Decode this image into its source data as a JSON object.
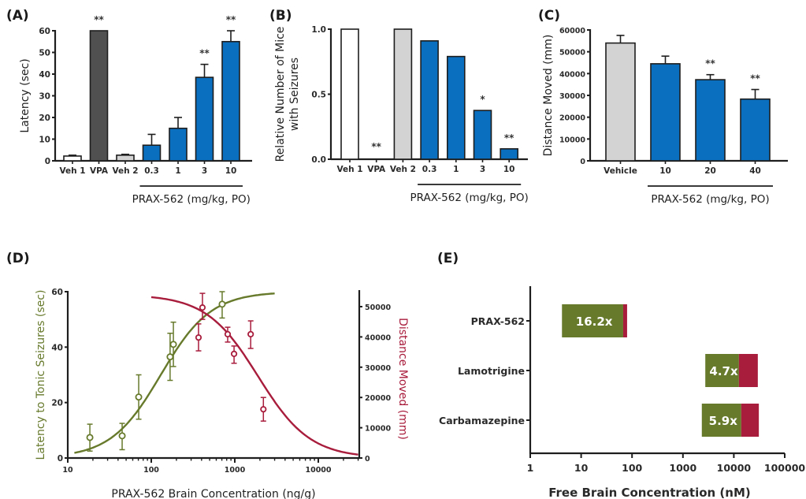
{
  "colors": {
    "blue": "#0b6fbf",
    "dark_gray": "#505050",
    "light_gray": "#d3d3d3",
    "white": "#ffffff",
    "green": "#677a2c",
    "red": "#a81c3c",
    "axis": "#1e1e1e"
  },
  "chart_data": [
    {
      "id": "A",
      "panel_label": "(A)",
      "type": "bar",
      "ylabel": "Latency (sec)",
      "xlabel": "",
      "ylim": [
        0,
        60
      ],
      "yticks": [
        0,
        10,
        20,
        30,
        40,
        50,
        60
      ],
      "categories": [
        "Veh 1",
        "VPA",
        "Veh 2",
        "0.3",
        "1",
        "3",
        "10"
      ],
      "values": [
        2.2,
        60,
        2.6,
        7.2,
        15,
        38.5,
        55
      ],
      "error_upper": [
        2.6,
        null,
        3.0,
        12.2,
        20,
        44.5,
        60
      ],
      "fills": [
        "white",
        "dark_gray",
        "light_gray",
        "blue",
        "blue",
        "blue",
        "blue"
      ],
      "significance": [
        "",
        "**",
        "",
        "",
        "",
        "**",
        "**"
      ],
      "group_label": "PRAX-562 (mg/kg, PO)",
      "group_span": [
        "0.3",
        "10"
      ]
    },
    {
      "id": "B",
      "panel_label": "(B)",
      "type": "bar",
      "ylabel": "Relative Number of Mice with Seizures",
      "ylabel_lines": [
        "Relative Number of Mice",
        "with Seizures"
      ],
      "xlabel": "",
      "ylim": [
        0,
        1.0
      ],
      "yticks": [
        0.0,
        0.5,
        1.0
      ],
      "ytick_labels": [
        "0.0",
        "0.5",
        "1.0"
      ],
      "categories": [
        "Veh 1",
        "VPA",
        "Veh 2",
        "0.3",
        "1",
        "3",
        "10"
      ],
      "values": [
        1.0,
        0,
        1.0,
        0.91,
        0.79,
        0.375,
        0.08
      ],
      "fills": [
        "white",
        "none",
        "light_gray",
        "blue",
        "blue",
        "blue",
        "blue"
      ],
      "significance": [
        "",
        "**",
        "",
        "",
        "",
        "*",
        "**"
      ],
      "group_label": "PRAX-562 (mg/kg, PO)",
      "group_span": [
        "0.3",
        "10"
      ]
    },
    {
      "id": "C",
      "panel_label": "(C)",
      "type": "bar",
      "ylabel": "Distance Moved (mm)",
      "xlabel": "",
      "ylim": [
        0,
        60000
      ],
      "yticks": [
        0,
        10000,
        20000,
        30000,
        40000,
        50000,
        60000
      ],
      "categories": [
        "Vehicle",
        "10",
        "20",
        "40"
      ],
      "values": [
        54000,
        44500,
        37200,
        28300
      ],
      "error_upper": [
        57500,
        48000,
        39500,
        32700
      ],
      "fills": [
        "light_gray",
        "blue",
        "blue",
        "blue"
      ],
      "significance": [
        "",
        "",
        "**",
        "**"
      ],
      "group_label": "PRAX-562 (mg/kg, PO)",
      "group_span": [
        "10",
        "40"
      ]
    },
    {
      "id": "D",
      "panel_label": "(D)",
      "type": "scatter",
      "xlabel": "PRAX-562 Brain Concentration (ng/g)",
      "xscale": "log",
      "xlim": [
        10,
        30000
      ],
      "xticks": [
        10,
        100,
        1000,
        10000
      ],
      "ylabel_left": "Latency to Tonic Seizures (sec)",
      "ylim_left": [
        0,
        60
      ],
      "yticks_left": [
        0,
        20,
        40,
        60
      ],
      "ylabel_right": "Distance Moved (mm)",
      "ylim_right": [
        0,
        55000
      ],
      "yticks_right": [
        0,
        10000,
        20000,
        30000,
        40000,
        50000
      ],
      "series": [
        {
          "name": "Latency to Tonic Seizures",
          "axis": "left",
          "color": "green",
          "points": [
            {
              "x": 18.4,
              "y": 7.4,
              "lo": 2.5,
              "hi": 12.2
            },
            {
              "x": 44.8,
              "y": 8.0,
              "lo": 3.0,
              "hi": 12.5
            },
            {
              "x": 70.7,
              "y": 22.0,
              "lo": 14.0,
              "hi": 30.0
            },
            {
              "x": 168,
              "y": 36.5,
              "lo": 28.0,
              "hi": 45.0
            },
            {
              "x": 184,
              "y": 41.0,
              "lo": 33.0,
              "hi": 49.0
            },
            {
              "x": 706,
              "y": 55.5,
              "lo": 50.5,
              "hi": 60.0
            }
          ],
          "fit": {
            "model": "sigmoid-increasing",
            "bottom": 0,
            "top": 60,
            "ec50": 130,
            "hill": 1.45,
            "x_from": 12,
            "x_to": 3000
          }
        },
        {
          "name": "Distance Moved",
          "axis": "right",
          "color": "red",
          "points": [
            {
              "x": 368,
              "y": 39800,
              "lo": 35400,
              "hi": 44300
            },
            {
              "x": 410,
              "y": 49700,
              "lo": 45800,
              "hi": 54400
            },
            {
              "x": 822,
              "y": 40900,
              "lo": 38300,
              "hi": 43200
            },
            {
              "x": 980,
              "y": 34400,
              "lo": 31300,
              "hi": 37000
            },
            {
              "x": 1550,
              "y": 40900,
              "lo": 36200,
              "hi": 45300
            },
            {
              "x": 2200,
              "y": 16100,
              "lo": 12200,
              "hi": 20000
            }
          ],
          "fit": {
            "model": "sigmoid-decreasing",
            "bottom": 0,
            "top": 54000,
            "ec50": 1900,
            "hill": 1.4,
            "x_from": 100,
            "x_to": 30000
          }
        }
      ]
    },
    {
      "id": "E",
      "panel_label": "(E)",
      "type": "bar",
      "orientation": "horizontal-floating",
      "xlabel": "Free Brain Concentration (nM)",
      "xscale": "log",
      "xlim": [
        1,
        100000
      ],
      "xticks": [
        1,
        10,
        100,
        1000,
        10000,
        100000
      ],
      "categories": [
        "PRAX-562",
        "Lamotrigine",
        "Carbamazepine"
      ],
      "segments": [
        {
          "green_start": 4.2,
          "green_end": 67,
          "red_end": 80,
          "ratio_label": "16.2x"
        },
        {
          "green_start": 2750,
          "green_end": 12600,
          "red_end": 29600,
          "ratio_label": "4.7x"
        },
        {
          "green_start": 2350,
          "green_end": 14000,
          "red_end": 31000,
          "ratio_label": "5.9x"
        }
      ]
    }
  ]
}
